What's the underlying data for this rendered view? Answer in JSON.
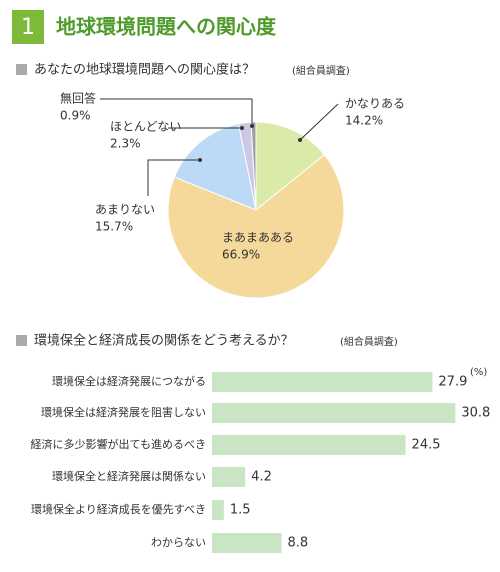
{
  "header": {
    "number": "1",
    "title": "地球環境問題への関心度"
  },
  "chart_data": [
    {
      "type": "pie",
      "title": "あなたの地球環境問題への関心度は？",
      "note": "(組合員調査)",
      "categories": [
        "かなりある",
        "まあまあある",
        "あまりない",
        "ほとんどない",
        "無回答"
      ],
      "values": [
        14.2,
        66.9,
        15.7,
        2.3,
        0.9
      ],
      "value_labels": [
        "14.2%",
        "66.9%",
        "15.7%",
        "2.3%",
        "0.9%"
      ],
      "colors": [
        "#d9eaa9",
        "#f5d99b",
        "#bcdaf5",
        "#cdc8e6",
        "#9e9e9e"
      ]
    },
    {
      "type": "bar",
      "title": "環境保全と経済成長の関係をどう考えるか？",
      "note": "(組合員調査)",
      "unit": "(%)",
      "categories": [
        "環境保全は経済発展につながる",
        "環境保全は経済発展を阻害しない",
        "経済に多少影響が出ても進めるべき",
        "環境保全と経済発展は関係ない",
        "環境保全より経済成長を優先すべき",
        "わからない"
      ],
      "values": [
        27.9,
        30.8,
        24.5,
        4.2,
        1.5,
        8.8
      ],
      "color": "#c9e5c3"
    }
  ]
}
